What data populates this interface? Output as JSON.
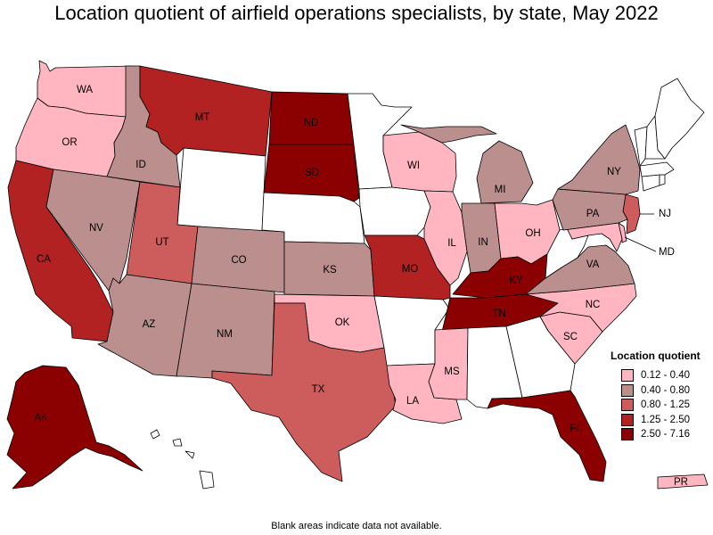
{
  "title": "Location quotient of airfield operations specialists, by state, May 2022",
  "legend": {
    "title": "Location quotient",
    "items": [
      {
        "label": "0.12 - 0.40",
        "color": "#ffb6c1"
      },
      {
        "label": "0.40 - 0.80",
        "color": "#bc8f8f"
      },
      {
        "label": "0.80 - 1.25",
        "color": "#cd5c5c"
      },
      {
        "label": "1.25 - 2.50",
        "color": "#b22222"
      },
      {
        "label": "2.50 - 7.16",
        "color": "#8b0000"
      }
    ]
  },
  "footnote": "Blank areas indicate data not available.",
  "blank_color": "#ffffff",
  "states": [
    {
      "abbr": "WA",
      "bin": 0,
      "show": true
    },
    {
      "abbr": "OR",
      "bin": 0,
      "show": true
    },
    {
      "abbr": "CA",
      "bin": 3,
      "show": true
    },
    {
      "abbr": "ID",
      "bin": 1,
      "show": true
    },
    {
      "abbr": "NV",
      "bin": 1,
      "show": true
    },
    {
      "abbr": "MT",
      "bin": 3,
      "show": true
    },
    {
      "abbr": "WY",
      "bin": null,
      "show": false
    },
    {
      "abbr": "UT",
      "bin": 2,
      "show": true
    },
    {
      "abbr": "AZ",
      "bin": 1,
      "show": true
    },
    {
      "abbr": "CO",
      "bin": 1,
      "show": true
    },
    {
      "abbr": "NM",
      "bin": 1,
      "show": true
    },
    {
      "abbr": "ND",
      "bin": 4,
      "show": true
    },
    {
      "abbr": "SD",
      "bin": 4,
      "show": true
    },
    {
      "abbr": "NE",
      "bin": null,
      "show": false
    },
    {
      "abbr": "KS",
      "bin": 1,
      "show": true
    },
    {
      "abbr": "OK",
      "bin": 0,
      "show": true
    },
    {
      "abbr": "TX",
      "bin": 2,
      "show": true
    },
    {
      "abbr": "MN",
      "bin": null,
      "show": false
    },
    {
      "abbr": "IA",
      "bin": null,
      "show": false
    },
    {
      "abbr": "MO",
      "bin": 3,
      "show": true
    },
    {
      "abbr": "AR",
      "bin": null,
      "show": false
    },
    {
      "abbr": "LA",
      "bin": 0,
      "show": true
    },
    {
      "abbr": "WI",
      "bin": 0,
      "show": true
    },
    {
      "abbr": "IL",
      "bin": 0,
      "show": true
    },
    {
      "abbr": "MI",
      "bin": 1,
      "show": true
    },
    {
      "abbr": "IN",
      "bin": 1,
      "show": true
    },
    {
      "abbr": "OH",
      "bin": 0,
      "show": true
    },
    {
      "abbr": "KY",
      "bin": 4,
      "show": true
    },
    {
      "abbr": "TN",
      "bin": 4,
      "show": true
    },
    {
      "abbr": "MS",
      "bin": 0,
      "show": true
    },
    {
      "abbr": "AL",
      "bin": null,
      "show": false
    },
    {
      "abbr": "GA",
      "bin": null,
      "show": false
    },
    {
      "abbr": "FL",
      "bin": 4,
      "show": true
    },
    {
      "abbr": "SC",
      "bin": 0,
      "show": true
    },
    {
      "abbr": "NC",
      "bin": 0,
      "show": true
    },
    {
      "abbr": "VA",
      "bin": 1,
      "show": true
    },
    {
      "abbr": "WV",
      "bin": null,
      "show": false
    },
    {
      "abbr": "MD",
      "bin": 0,
      "show": true
    },
    {
      "abbr": "DE",
      "bin": 0,
      "show": false
    },
    {
      "abbr": "NJ",
      "bin": 2,
      "show": true
    },
    {
      "abbr": "PA",
      "bin": 1,
      "show": true
    },
    {
      "abbr": "NY",
      "bin": 1,
      "show": true
    },
    {
      "abbr": "CT",
      "bin": null,
      "show": false
    },
    {
      "abbr": "RI",
      "bin": null,
      "show": false
    },
    {
      "abbr": "MA",
      "bin": null,
      "show": false
    },
    {
      "abbr": "VT",
      "bin": null,
      "show": false
    },
    {
      "abbr": "NH",
      "bin": null,
      "show": false
    },
    {
      "abbr": "ME",
      "bin": null,
      "show": false
    },
    {
      "abbr": "AK",
      "bin": 4,
      "show": true
    },
    {
      "abbr": "HI",
      "bin": null,
      "show": false
    },
    {
      "abbr": "PR",
      "bin": 0,
      "show": true
    }
  ]
}
